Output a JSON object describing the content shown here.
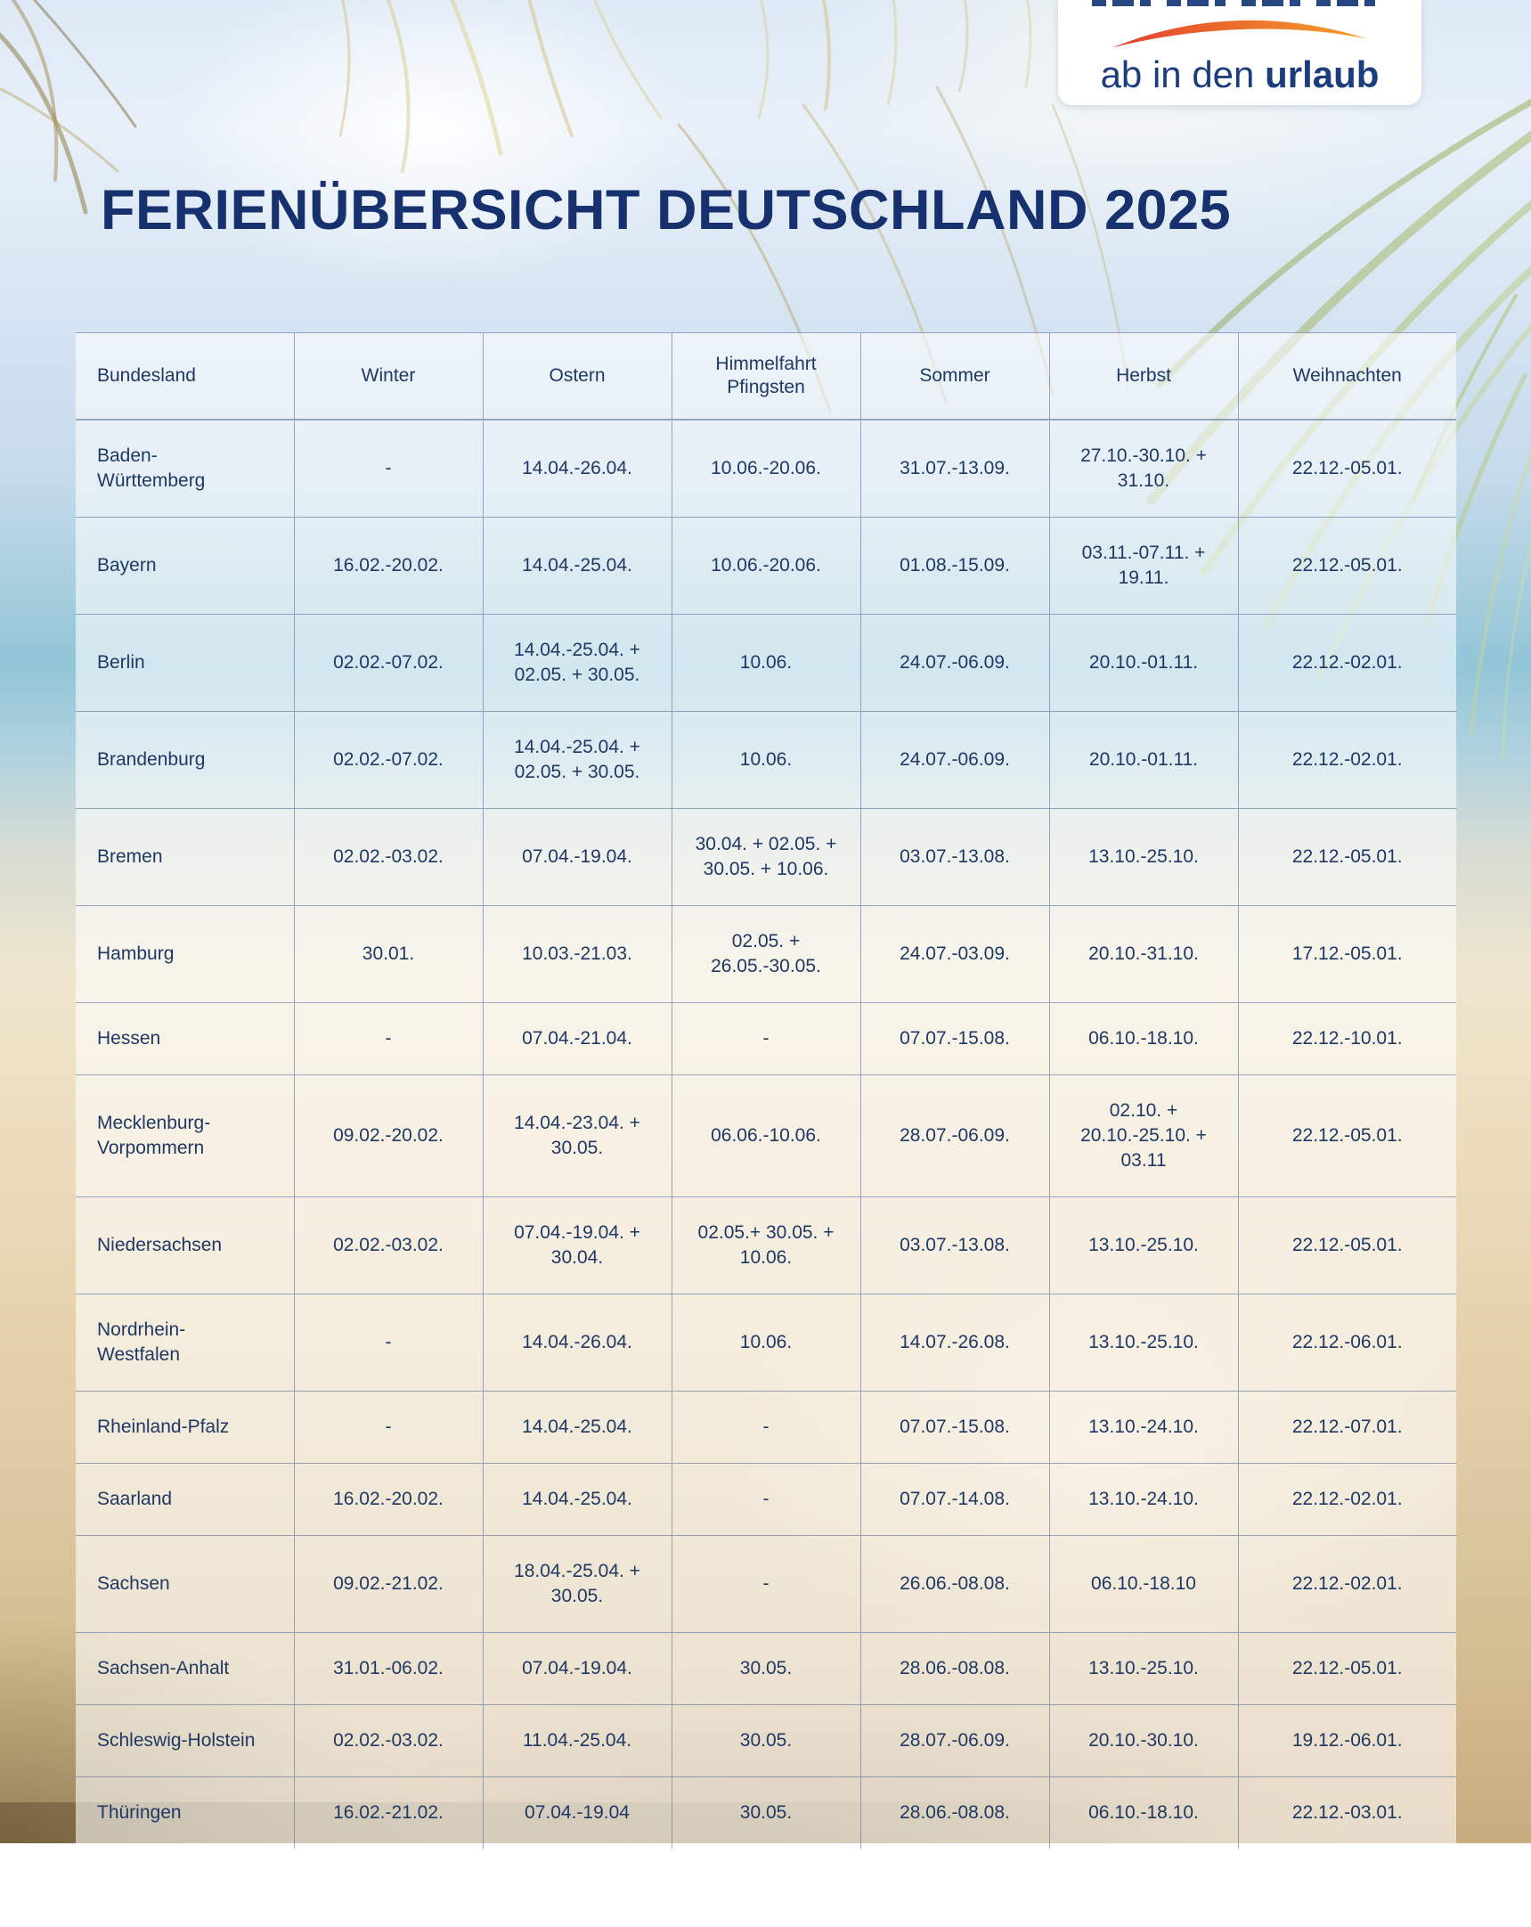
{
  "logo": {
    "brand_regular": "ab in den",
    "brand_bold": "urlaub",
    "swoosh_gradient_start": "#e2402d",
    "swoosh_gradient_end": "#f5a02c",
    "text_color": "#1b3d7c"
  },
  "title": "FERIENÜBERSICHT DEUTSCHLAND 2025",
  "colors": {
    "title_text": "#16316d",
    "table_text": "#1f3864",
    "grid_line": "rgba(90,112,160,0.60)",
    "panel_background": "rgba(255,255,255,0.58)"
  },
  "chart_data": {
    "type": "table",
    "title": "Ferienübersicht Deutschland 2025",
    "headers": [
      "Bundesland",
      "Winter",
      "Ostern",
      "Himmelfahrt\nPfingsten",
      "Sommer",
      "Herbst",
      "Weihnachten"
    ],
    "rows": [
      [
        "Baden-Württemberg",
        "-",
        "14.04.-26.04.",
        "10.06.-20.06.",
        "31.07.-13.09.",
        "27.10.-30.10. + 31.10.",
        "22.12.-05.01."
      ],
      [
        "Bayern",
        "16.02.-20.02.",
        "14.04.-25.04.",
        "10.06.-20.06.",
        "01.08.-15.09.",
        "03.11.-07.11. + 19.11.",
        "22.12.-05.01."
      ],
      [
        "Berlin",
        "02.02.-07.02.",
        "14.04.-25.04. + 02.05. + 30.05.",
        "10.06.",
        "24.07.-06.09.",
        "20.10.-01.11.",
        "22.12.-02.01."
      ],
      [
        "Brandenburg",
        "02.02.-07.02.",
        "14.04.-25.04. + 02.05. + 30.05.",
        "10.06.",
        "24.07.-06.09.",
        "20.10.-01.11.",
        "22.12.-02.01."
      ],
      [
        "Bremen",
        "02.02.-03.02.",
        "07.04.-19.04.",
        "30.04. + 02.05. + 30.05. + 10.06.",
        "03.07.-13.08.",
        "13.10.-25.10.",
        "22.12.-05.01."
      ],
      [
        "Hamburg",
        "30.01.",
        "10.03.-21.03.",
        "02.05. + 26.05.-30.05.",
        "24.07.-03.09.",
        "20.10.-31.10.",
        "17.12.-05.01."
      ],
      [
        "Hessen",
        "-",
        "07.04.-21.04.",
        "-",
        "07.07.-15.08.",
        "06.10.-18.10.",
        "22.12.-10.01."
      ],
      [
        "Mecklenburg-Vorpommern",
        "09.02.-20.02.",
        "14.04.-23.04. + 30.05.",
        "06.06.-10.06.",
        "28.07.-06.09.",
        "02.10. + 20.10.-25.10. + 03.11",
        "22.12.-05.01."
      ],
      [
        "Niedersachsen",
        "02.02.-03.02.",
        "07.04.-19.04. + 30.04.",
        "02.05.+ 30.05. + 10.06.",
        "03.07.-13.08.",
        "13.10.-25.10.",
        "22.12.-05.01."
      ],
      [
        "Nordrhein-Westfalen",
        "-",
        "14.04.-26.04.",
        "10.06.",
        "14.07.-26.08.",
        "13.10.-25.10.",
        "22.12.-06.01."
      ],
      [
        "Rheinland-Pfalz",
        "-",
        "14.04.-25.04.",
        "-",
        "07.07.-15.08.",
        "13.10.-24.10.",
        "22.12.-07.01."
      ],
      [
        "Saarland",
        "16.02.-20.02.",
        "14.04.-25.04.",
        "-",
        "07.07.-14.08.",
        "13.10.-24.10.",
        "22.12.-02.01."
      ],
      [
        "Sachsen",
        "09.02.-21.02.",
        "18.04.-25.04. + 30.05.",
        "-",
        "26.06.-08.08.",
        "06.10.-18.10",
        "22.12.-02.01."
      ],
      [
        "Sachsen-Anhalt",
        "31.01.-06.02.",
        "07.04.-19.04.",
        "30.05.",
        "28.06.-08.08.",
        "13.10.-25.10.",
        "22.12.-05.01."
      ],
      [
        "Schleswig-Holstein",
        "02.02.-03.02.",
        "11.04.-25.04.",
        "30.05.",
        "28.07.-06.09.",
        "20.10.-30.10.",
        "19.12.-06.01."
      ],
      [
        "Thüringen",
        "16.02.-21.02.",
        "07.04.-19.04",
        "30.05.",
        "28.06.-08.08.",
        "06.10.-18.10.",
        "22.12.-03.01."
      ]
    ]
  }
}
